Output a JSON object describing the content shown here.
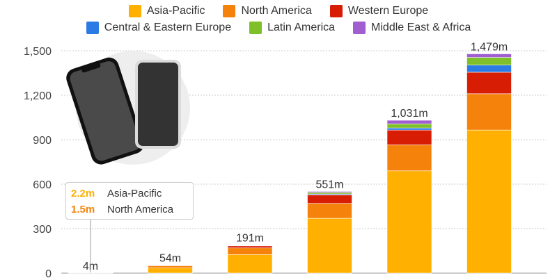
{
  "chart_data": {
    "type": "bar",
    "stacked": true,
    "categories": [
      "",
      "",
      "",
      "",
      "",
      ""
    ],
    "series": [
      {
        "name": "Asia-Pacific",
        "color": "#FFB000",
        "values": [
          2.2,
          35,
          125,
          370,
          690,
          965
        ]
      },
      {
        "name": "North America",
        "color": "#F5820A",
        "values": [
          1.5,
          15,
          45,
          100,
          175,
          245
        ]
      },
      {
        "name": "Western Europe",
        "color": "#D71E05",
        "values": [
          0.3,
          3,
          14,
          58,
          100,
          145
        ]
      },
      {
        "name": "Central & Eastern Europe",
        "color": "#2C7BE5",
        "values": [
          0,
          0,
          2,
          6,
          14,
          48
        ]
      },
      {
        "name": "Latin America",
        "color": "#7FBF2A",
        "values": [
          0,
          1,
          3,
          10,
          28,
          52
        ]
      },
      {
        "name": "Middle East & Africa",
        "color": "#A15ED1",
        "values": [
          0,
          0,
          2,
          7,
          24,
          24
        ]
      }
    ],
    "totals_labels": [
      "4m",
      "54m",
      "191m",
      "551m",
      "1,031m",
      "1,479m"
    ],
    "totals": [
      4,
      54,
      191,
      551,
      1031,
      1479
    ],
    "y_ticks": [
      "0",
      "300",
      "600",
      "900",
      "1,200",
      "1,500"
    ],
    "y_tick_values": [
      0,
      300,
      600,
      900,
      1200,
      1500
    ],
    "ylim": [
      0,
      1500
    ],
    "grid": true,
    "legend_position": "top-center"
  },
  "legend": [
    {
      "label": "Asia-Pacific",
      "color": "#FFB000"
    },
    {
      "label": "North America",
      "color": "#F5820A"
    },
    {
      "label": "Western Europe",
      "color": "#D71E05"
    },
    {
      "label": "Central & Eastern Europe",
      "color": "#2C7BE5"
    },
    {
      "label": "Latin America",
      "color": "#7FBF2A"
    },
    {
      "label": "Middle East & Africa",
      "color": "#A15ED1"
    }
  ],
  "callout": {
    "rows": [
      {
        "value": "2.2m",
        "label": "Asia-Pacific",
        "color": "#FFB000"
      },
      {
        "value": "1.5m",
        "label": "North America",
        "color": "#F5820A"
      }
    ]
  },
  "illustration": {
    "icon": "smartphones-icon"
  }
}
